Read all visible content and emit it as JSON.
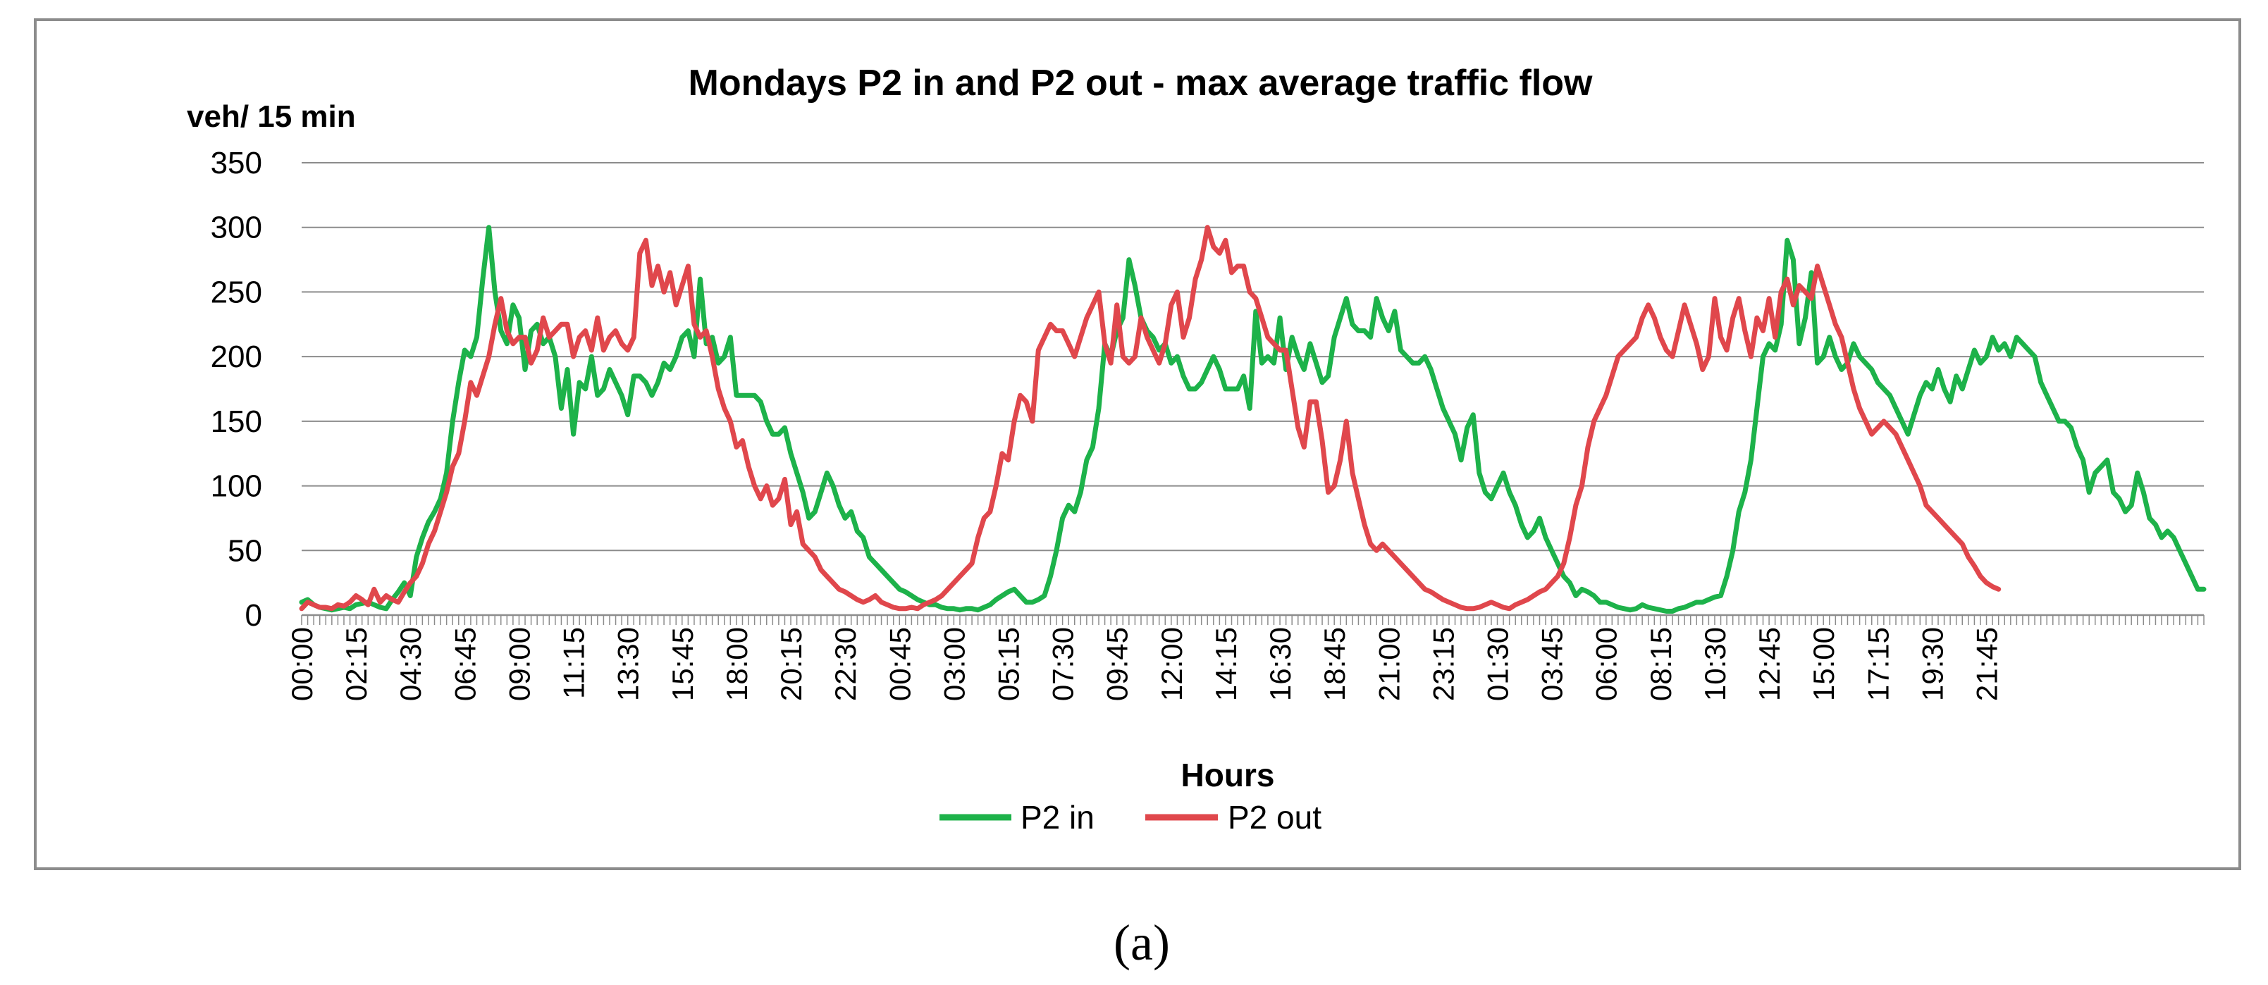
{
  "caption": "(a)",
  "chart_data": {
    "type": "line",
    "title": "Mondays P2 in and P2 out - max average traffic flow",
    "ylabel": "veh/ 15 min",
    "xlabel": "Hours",
    "ylim": [
      0,
      350
    ],
    "yticks": [
      0,
      50,
      100,
      150,
      200,
      250,
      300,
      350
    ],
    "grid": true,
    "legend_placement": "bottom-center",
    "x_interval_minutes": 15,
    "x_tick_labels": [
      "00:00",
      "02:15",
      "04:30",
      "06:45",
      "09:00",
      "11:15",
      "13:30",
      "15:45",
      "18:00",
      "20:15",
      "22:30",
      "00:45",
      "03:00",
      "05:15",
      "07:30",
      "09:45",
      "12:00",
      "14:15",
      "16:30",
      "18:45",
      "21:00",
      "23:15",
      "01:30",
      "03:45",
      "06:00",
      "08:15",
      "10:30",
      "12:45",
      "15:00",
      "17:15",
      "19:30",
      "21:45"
    ],
    "series": [
      {
        "name": "P2 in",
        "color": "#1db24a",
        "values": [
          10,
          12,
          8,
          6,
          5,
          4,
          5,
          6,
          5,
          8,
          9,
          10,
          8,
          6,
          5,
          12,
          18,
          25,
          15,
          45,
          60,
          72,
          80,
          90,
          110,
          150,
          180,
          205,
          200,
          215,
          260,
          300,
          250,
          220,
          210,
          240,
          230,
          190,
          220,
          225,
          210,
          215,
          200,
          160,
          190,
          140,
          180,
          175,
          200,
          170,
          175,
          190,
          180,
          170,
          155,
          185,
          185,
          180,
          170,
          180,
          195,
          190,
          200,
          215,
          220,
          200,
          260,
          210,
          215,
          195,
          200,
          215,
          170,
          170,
          170,
          170,
          165,
          150,
          140,
          140,
          145,
          125,
          110,
          95,
          75,
          80,
          95,
          110,
          100,
          85,
          75,
          80,
          65,
          60,
          45,
          40,
          35,
          30,
          25,
          20,
          18,
          15,
          12,
          10,
          8,
          8,
          6,
          5,
          5,
          4,
          5,
          5,
          4,
          6,
          8,
          12,
          15,
          18,
          20,
          15,
          10,
          10,
          12,
          15,
          30,
          50,
          75,
          85,
          80,
          95,
          120,
          130,
          160,
          210,
          200,
          220,
          230,
          275,
          255,
          230,
          220,
          215,
          205,
          210,
          195,
          200,
          185,
          175,
          175,
          180,
          190,
          200,
          190,
          175,
          175,
          175,
          185,
          160,
          235,
          195,
          200,
          195,
          230,
          190,
          215,
          200,
          190,
          210,
          195,
          180,
          185,
          215,
          230,
          245,
          225,
          220,
          220,
          215,
          245,
          230,
          220,
          235,
          205,
          200,
          195,
          195,
          200,
          190,
          175,
          160,
          150,
          140,
          120,
          145,
          155,
          110,
          95,
          90,
          100,
          110,
          95,
          85,
          70,
          60,
          65,
          75,
          60,
          50,
          40,
          30,
          25,
          15,
          20,
          18,
          15,
          10,
          10,
          8,
          6,
          5,
          4,
          5,
          8,
          6,
          5,
          4,
          3,
          3,
          5,
          6,
          8,
          10,
          10,
          12,
          14,
          15,
          30,
          50,
          80,
          95,
          120,
          160,
          200,
          210,
          205,
          225,
          290,
          275,
          210,
          230,
          265,
          195,
          200,
          215,
          200,
          190,
          195,
          210,
          200,
          195,
          190,
          180,
          175,
          170,
          160,
          150,
          140,
          155,
          170,
          180,
          175,
          190,
          175,
          165,
          185,
          175,
          190,
          205,
          195,
          200,
          215,
          205,
          210,
          200,
          215,
          210,
          205,
          200,
          180,
          170,
          160,
          150,
          150,
          145,
          130,
          120,
          95,
          110,
          115,
          120,
          95,
          90,
          80,
          85,
          110,
          95,
          75,
          70,
          60,
          65,
          60,
          50,
          40,
          30,
          20,
          20
        ]
      },
      {
        "name": "P2 out",
        "color": "#e0474c",
        "values": [
          5,
          10,
          8,
          6,
          6,
          5,
          8,
          7,
          10,
          15,
          12,
          8,
          20,
          10,
          15,
          12,
          10,
          18,
          25,
          30,
          40,
          55,
          65,
          80,
          95,
          115,
          125,
          150,
          180,
          170,
          185,
          200,
          225,
          245,
          220,
          210,
          215,
          215,
          195,
          205,
          230,
          215,
          220,
          225,
          225,
          200,
          215,
          220,
          205,
          230,
          205,
          215,
          220,
          210,
          205,
          215,
          280,
          290,
          255,
          270,
          250,
          265,
          240,
          255,
          270,
          225,
          215,
          220,
          200,
          175,
          160,
          150,
          130,
          135,
          115,
          100,
          90,
          100,
          85,
          90,
          105,
          70,
          80,
          55,
          50,
          45,
          35,
          30,
          25,
          20,
          18,
          15,
          12,
          10,
          12,
          15,
          10,
          8,
          6,
          5,
          5,
          6,
          5,
          8,
          10,
          12,
          15,
          20,
          25,
          30,
          35,
          40,
          60,
          75,
          80,
          100,
          125,
          120,
          150,
          170,
          165,
          150,
          205,
          215,
          225,
          220,
          220,
          210,
          200,
          215,
          230,
          240,
          250,
          210,
          195,
          240,
          200,
          195,
          200,
          230,
          215,
          205,
          195,
          210,
          240,
          250,
          215,
          230,
          260,
          275,
          300,
          285,
          280,
          290,
          265,
          270,
          270,
          250,
          245,
          230,
          215,
          210,
          205,
          205,
          175,
          145,
          130,
          165,
          165,
          135,
          95,
          100,
          120,
          150,
          110,
          90,
          70,
          55,
          50,
          55,
          50,
          45,
          40,
          35,
          30,
          25,
          20,
          18,
          15,
          12,
          10,
          8,
          6,
          5,
          5,
          6,
          8,
          10,
          8,
          6,
          5,
          8,
          10,
          12,
          15,
          18,
          20,
          25,
          30,
          40,
          60,
          85,
          100,
          130,
          150,
          160,
          170,
          185,
          200,
          205,
          210,
          215,
          230,
          240,
          230,
          215,
          205,
          200,
          220,
          240,
          225,
          210,
          190,
          200,
          245,
          215,
          205,
          230,
          245,
          220,
          200,
          230,
          220,
          245,
          215,
          250,
          260,
          240,
          255,
          250,
          245,
          270,
          255,
          240,
          225,
          215,
          195,
          175,
          160,
          150,
          140,
          145,
          150,
          145,
          140,
          130,
          120,
          110,
          100,
          85,
          80,
          75,
          70,
          65,
          60,
          55,
          45,
          38,
          30,
          25,
          22,
          20
        ]
      }
    ]
  }
}
